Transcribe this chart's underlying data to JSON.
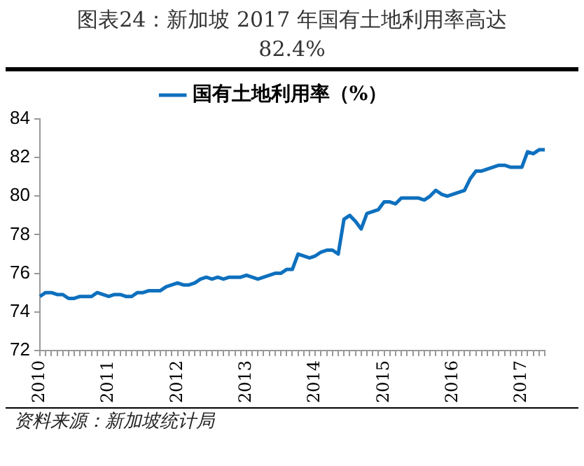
{
  "chart_data": {
    "type": "line",
    "title": "图表24：新加坡 2017 年国有土地利用率高达 82.4%",
    "categories": [
      "2010",
      null,
      null,
      null,
      null,
      null,
      null,
      null,
      null,
      null,
      null,
      null,
      "2011",
      null,
      null,
      null,
      null,
      null,
      null,
      null,
      null,
      null,
      null,
      null,
      "2012",
      null,
      null,
      null,
      null,
      null,
      null,
      null,
      null,
      null,
      null,
      null,
      "2013",
      null,
      null,
      null,
      null,
      null,
      null,
      null,
      null,
      null,
      null,
      null,
      "2014",
      null,
      null,
      null,
      null,
      null,
      null,
      null,
      null,
      null,
      null,
      null,
      "2015",
      null,
      null,
      null,
      null,
      null,
      null,
      null,
      null,
      null,
      null,
      null,
      "2016",
      null,
      null,
      null,
      null,
      null,
      null,
      null,
      null,
      null,
      null,
      null,
      "2017",
      null,
      null,
      null,
      null
    ],
    "series": [
      {
        "name": "国有土地利用率（%）",
        "color": "#0e70be",
        "values": [
          74.8,
          75.0,
          75.0,
          74.9,
          74.9,
          74.7,
          74.7,
          74.8,
          74.8,
          74.8,
          75.0,
          74.9,
          74.8,
          74.9,
          74.9,
          74.8,
          74.8,
          75.0,
          75.0,
          75.1,
          75.1,
          75.1,
          75.3,
          75.4,
          75.5,
          75.4,
          75.4,
          75.5,
          75.7,
          75.8,
          75.7,
          75.8,
          75.7,
          75.8,
          75.8,
          75.8,
          75.9,
          75.8,
          75.7,
          75.8,
          75.9,
          76.0,
          76.0,
          76.2,
          76.2,
          77.0,
          76.9,
          76.8,
          76.9,
          77.1,
          77.2,
          77.2,
          77.0,
          78.8,
          79.0,
          78.7,
          78.3,
          79.1,
          79.2,
          79.3,
          79.7,
          79.7,
          79.6,
          79.9,
          79.9,
          79.9,
          79.9,
          79.8,
          80.0,
          80.3,
          80.1,
          80.0,
          80.1,
          80.2,
          80.3,
          80.9,
          81.3,
          81.3,
          81.4,
          81.5,
          81.6,
          81.6,
          81.5,
          81.5,
          81.5,
          82.3,
          82.2,
          82.4,
          82.4
        ]
      }
    ],
    "ylim": [
      72,
      84
    ],
    "yticks": [
      72,
      74,
      76,
      78,
      80,
      82,
      84
    ],
    "grid": false,
    "legend": "top",
    "marker": "none",
    "line_style": "solid",
    "annotations": [
      "资料来源：新加坡统计局"
    ]
  }
}
